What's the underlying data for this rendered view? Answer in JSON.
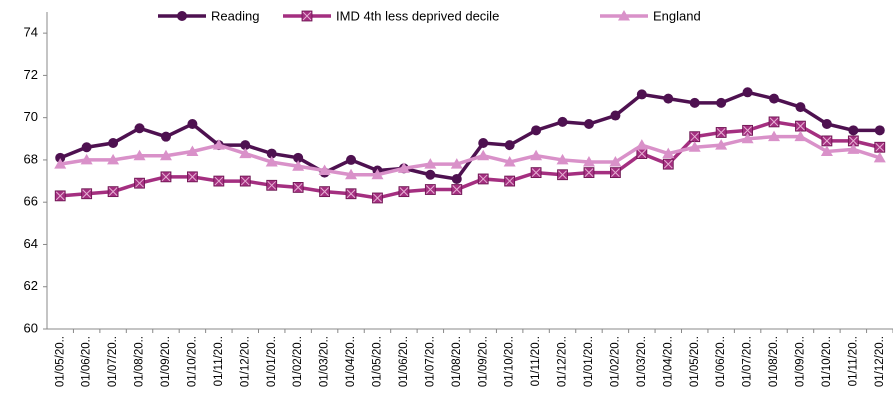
{
  "chart_data": {
    "type": "line",
    "categories": [
      "01/05/20..",
      "01/06/20..",
      "01/07/20..",
      "01/08/20..",
      "01/09/20..",
      "01/10/20..",
      "01/11/20..",
      "01/12/20..",
      "01/01/20..",
      "01/02/20..",
      "01/03/20..",
      "01/04/20..",
      "01/05/20..",
      "01/06/20..",
      "01/07/20..",
      "01/08/20..",
      "01/09/20..",
      "01/10/20..",
      "01/11/20..",
      "01/12/20..",
      "01/01/20..",
      "01/02/20..",
      "01/03/20..",
      "01/04/20..",
      "01/05/20..",
      "01/06/20..",
      "01/07/20..",
      "01/08/20..",
      "01/09/20..",
      "01/10/20..",
      "01/11/20..",
      "01/12/20.."
    ],
    "series": [
      {
        "name": "Reading",
        "color": "#4e1150",
        "marker": "circle",
        "values": [
          68.1,
          68.6,
          68.8,
          69.5,
          69.1,
          69.7,
          68.7,
          68.7,
          68.3,
          68.1,
          67.4,
          68.0,
          67.5,
          67.6,
          67.3,
          67.1,
          68.8,
          68.7,
          69.4,
          69.8,
          69.7,
          70.1,
          71.1,
          70.9,
          70.7,
          70.7,
          71.2,
          70.9,
          70.5,
          69.7,
          69.4,
          69.4
        ]
      },
      {
        "name": "IMD 4th less deprived decile",
        "color": "#a42f80",
        "marker": "square",
        "values": [
          66.3,
          66.4,
          66.5,
          66.9,
          67.2,
          67.2,
          67.0,
          67.0,
          66.8,
          66.7,
          66.5,
          66.4,
          66.2,
          66.5,
          66.6,
          66.6,
          67.1,
          67.0,
          67.4,
          67.3,
          67.4,
          67.4,
          68.3,
          67.8,
          69.1,
          69.3,
          69.4,
          69.8,
          69.6,
          68.9,
          68.9,
          68.6
        ]
      },
      {
        "name": "England",
        "color": "#d991c9",
        "marker": "triangle",
        "values": [
          67.8,
          68.0,
          68.0,
          68.2,
          68.2,
          68.4,
          68.7,
          68.3,
          67.9,
          67.7,
          67.5,
          67.3,
          67.3,
          67.6,
          67.8,
          67.8,
          68.2,
          67.9,
          68.2,
          68.0,
          67.9,
          67.9,
          68.7,
          68.3,
          68.6,
          68.7,
          69.0,
          69.1,
          69.1,
          68.4,
          68.5,
          68.1
        ]
      }
    ],
    "ylim": [
      60,
      75
    ],
    "yticks": [
      60,
      62,
      64,
      66,
      68,
      70,
      72,
      74
    ],
    "grid": false,
    "legend": "top"
  }
}
